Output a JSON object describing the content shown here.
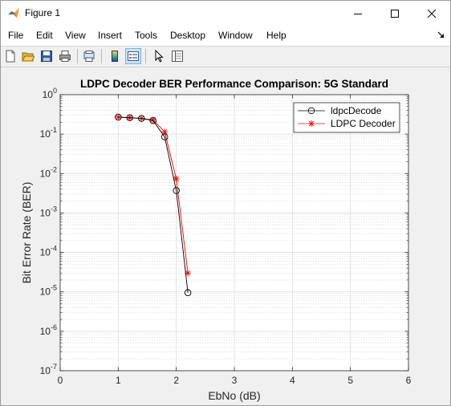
{
  "window": {
    "title": "Figure 1",
    "icons": {
      "app": "matlab-logo-icon",
      "minimize": "minimize-icon",
      "maximize": "maximize-icon",
      "close": "close-icon"
    }
  },
  "menu": {
    "items": [
      "File",
      "Edit",
      "View",
      "Insert",
      "Tools",
      "Desktop",
      "Window",
      "Help"
    ]
  },
  "toolbar": {
    "buttons": [
      "new-figure-icon",
      "open-file-icon",
      "save-icon",
      "print-icon",
      "print-preview-icon",
      "insert-colorbar-icon",
      "insert-legend-icon",
      "edit-plot-icon",
      "property-inspector-icon"
    ]
  },
  "chart_data": {
    "type": "line",
    "title": "LDPC Decoder BER Performance Comparison: 5G Standard",
    "xlabel": "EbNo (dB)",
    "ylabel": "Bit Error Rate (BER)",
    "xlim": [
      0,
      6
    ],
    "ylim": [
      1e-07,
      1
    ],
    "yscale": "log",
    "grid": true,
    "minor_grid": true,
    "x_ticks": [
      "0",
      "1",
      "2",
      "3",
      "4",
      "5",
      "6"
    ],
    "y_ticks": [
      {
        "base": "10",
        "exp": "-7"
      },
      {
        "base": "10",
        "exp": "-6"
      },
      {
        "base": "10",
        "exp": "-5"
      },
      {
        "base": "10",
        "exp": "-4"
      },
      {
        "base": "10",
        "exp": "-3"
      },
      {
        "base": "10",
        "exp": "-2"
      },
      {
        "base": "10",
        "exp": "-1"
      },
      {
        "base": "10",
        "exp": "0"
      }
    ],
    "legend_position": "top-right",
    "series": [
      {
        "name": "ldpcDecode",
        "color": "#000000",
        "marker": "circle",
        "x": [
          1.0,
          1.2,
          1.4,
          1.6,
          1.8,
          2.0,
          2.2
        ],
        "y": [
          0.27,
          0.26,
          0.25,
          0.22,
          0.085,
          0.0037,
          9.5e-06
        ]
      },
      {
        "name": "LDPC Decoder",
        "color": "#ff0000",
        "marker": "asterisk",
        "x": [
          1.0,
          1.2,
          1.4,
          1.6,
          1.8,
          2.0,
          2.2
        ],
        "y": [
          0.27,
          0.26,
          0.25,
          0.23,
          0.115,
          0.0073,
          3e-05
        ]
      }
    ]
  }
}
